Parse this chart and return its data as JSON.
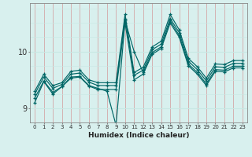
{
  "xlabel": "Humidex (Indice chaleur)",
  "ylabel": "",
  "bg_color": "#d8f0ee",
  "line_color": "#006666",
  "grid_color_v": "#c8e8e4",
  "grid_color_h": "#c8b8b8",
  "xlim": [
    -0.5,
    23.5
  ],
  "ylim": [
    8.75,
    10.85
  ],
  "yticks": [
    9,
    10
  ],
  "xticks": [
    0,
    1,
    2,
    3,
    4,
    5,
    6,
    7,
    8,
    9,
    10,
    11,
    12,
    13,
    14,
    15,
    16,
    17,
    18,
    19,
    20,
    21,
    22,
    23
  ],
  "series": [
    [
      9.3,
      9.6,
      9.4,
      9.45,
      9.65,
      9.67,
      9.5,
      9.45,
      9.45,
      9.45,
      10.65,
      9.63,
      9.72,
      10.08,
      10.18,
      10.65,
      10.38,
      9.88,
      9.73,
      9.53,
      9.78,
      9.77,
      9.84,
      9.84
    ],
    [
      9.25,
      9.55,
      9.35,
      9.42,
      9.6,
      9.62,
      9.46,
      9.4,
      9.4,
      9.4,
      10.58,
      9.58,
      9.67,
      10.03,
      10.13,
      10.58,
      10.33,
      9.83,
      9.68,
      9.48,
      9.73,
      9.72,
      9.79,
      9.79
    ],
    [
      9.18,
      9.48,
      9.28,
      9.38,
      9.53,
      9.55,
      9.39,
      9.33,
      9.33,
      9.33,
      10.5,
      9.5,
      9.6,
      9.95,
      10.05,
      10.5,
      10.25,
      9.75,
      9.6,
      9.4,
      9.65,
      9.64,
      9.71,
      9.71
    ],
    [
      9.1,
      9.47,
      9.25,
      9.38,
      9.55,
      9.56,
      9.4,
      9.35,
      9.3,
      8.7,
      10.54,
      10.0,
      9.63,
      9.98,
      10.08,
      10.54,
      10.28,
      9.78,
      9.63,
      9.43,
      9.68,
      9.67,
      9.74,
      9.74
    ]
  ]
}
